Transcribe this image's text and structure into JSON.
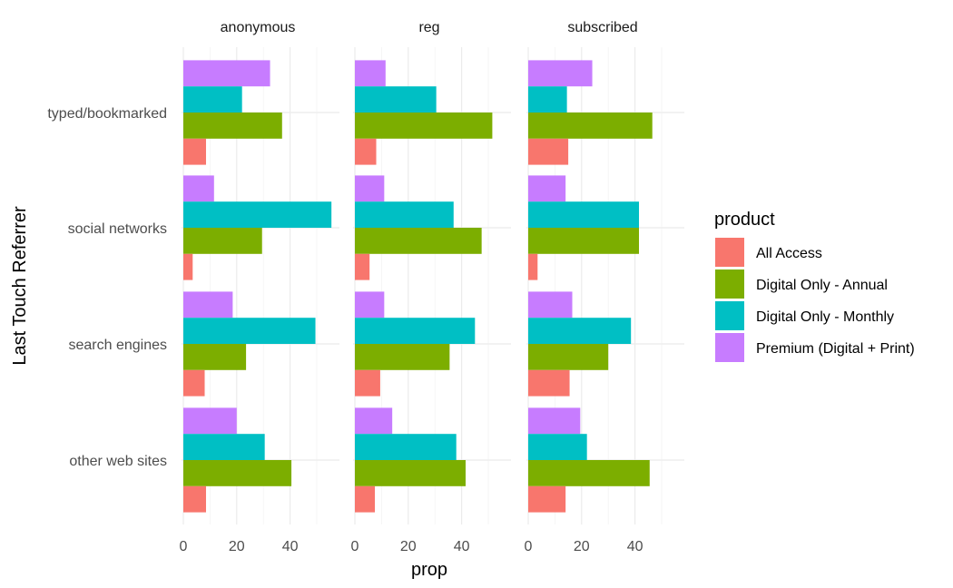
{
  "chart_data": {
    "type": "bar",
    "orientation": "horizontal",
    "layout": "faceted-dodged",
    "xlabel": "prop",
    "ylabel": "Last Touch Referrer",
    "xlim": [
      0,
      55
    ],
    "x_ticks": [
      0,
      20,
      40
    ],
    "grid": true,
    "legend": {
      "title": "product",
      "position": "right"
    },
    "facets": [
      "anonymous",
      "reg",
      "subscribed"
    ],
    "categories": [
      "typed/bookmarked",
      "social networks",
      "search engines",
      "other web sites"
    ],
    "series": [
      {
        "name": "All Access",
        "color": "#F8766D"
      },
      {
        "name": "Digital Only - Annual",
        "color": "#7CAE00"
      },
      {
        "name": "Digital Only - Monthly",
        "color": "#00BFC4"
      },
      {
        "name": "Premium (Digital + Print)",
        "color": "#C77CFF"
      }
    ],
    "values": {
      "anonymous": {
        "All Access": [
          8.5,
          3.5,
          8.0,
          8.5
        ],
        "Digital Only - Annual": [
          37,
          29.5,
          23.5,
          40.5
        ],
        "Digital Only - Monthly": [
          22,
          55.5,
          49.5,
          30.5
        ],
        "Premium (Digital + Print)": [
          32.5,
          11.5,
          18.5,
          20
        ]
      },
      "reg": {
        "All Access": [
          8,
          5.5,
          9.5,
          7.5
        ],
        "Digital Only - Annual": [
          51.5,
          47.5,
          35.5,
          41.5
        ],
        "Digital Only - Monthly": [
          30.5,
          37,
          45,
          38
        ],
        "Premium (Digital + Print)": [
          11.5,
          11,
          11,
          14
        ]
      },
      "subscribed": {
        "All Access": [
          15,
          3.5,
          15.5,
          14
        ],
        "Digital Only - Annual": [
          46.5,
          41.5,
          30,
          45.5
        ],
        "Digital Only - Monthly": [
          14.5,
          41.5,
          38.5,
          22
        ],
        "Premium (Digital + Print)": [
          24,
          14,
          16.5,
          19.5
        ]
      }
    }
  }
}
